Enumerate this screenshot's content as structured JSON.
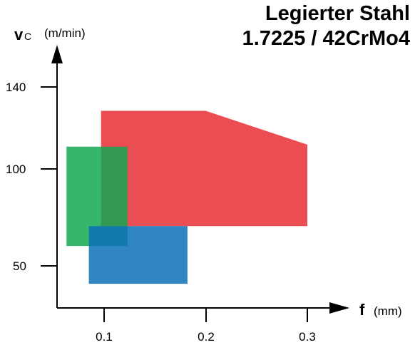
{
  "chart_data": {
    "type": "area",
    "title_line1": "Legierter Stahl",
    "title_line2": "1.7225 / 42CrMo4",
    "y_axis": {
      "symbol": "v",
      "subscript": "C",
      "unit": "(m/min)",
      "ticks": [
        "140",
        "100",
        "50"
      ]
    },
    "x_axis": {
      "symbol": "f",
      "unit": "(mm)",
      "ticks": [
        "0.1",
        "0.2",
        "0.3"
      ]
    },
    "regions": [
      {
        "color": "#e8262d",
        "opacity": 0.82,
        "points": [
          [
            0.097,
            128
          ],
          [
            0.2,
            128
          ],
          [
            0.3,
            111
          ],
          [
            0.3,
            70
          ],
          [
            0.097,
            70
          ]
        ]
      },
      {
        "color": "#13a951",
        "opacity": 0.85,
        "points": [
          [
            0.063,
            110
          ],
          [
            0.123,
            110
          ],
          [
            0.123,
            60
          ],
          [
            0.063,
            60
          ]
        ]
      },
      {
        "color": "#0c70b8",
        "opacity": 0.85,
        "points": [
          [
            0.085,
            70
          ],
          [
            0.182,
            70
          ],
          [
            0.182,
            41
          ],
          [
            0.085,
            41
          ]
        ]
      }
    ]
  }
}
